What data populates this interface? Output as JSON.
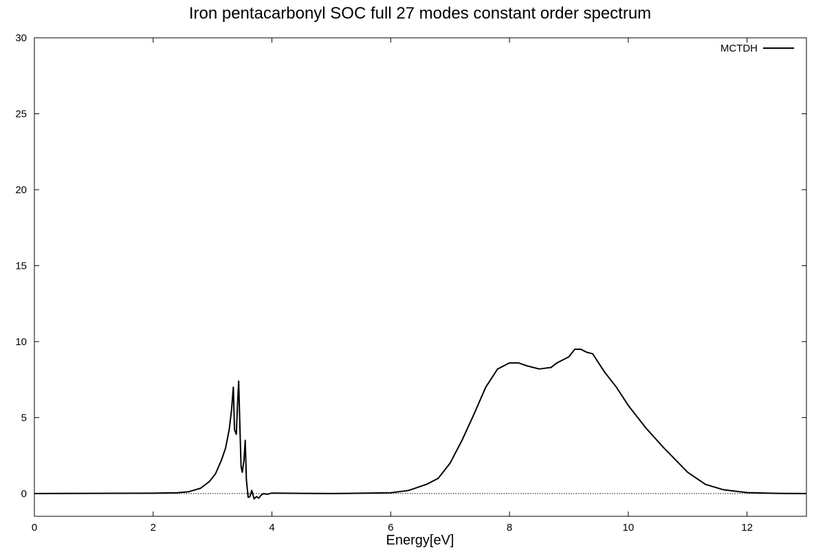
{
  "chart_data": {
    "type": "line",
    "title": "Iron pentacarbonyl SOC full 27 modes constant order spectrum",
    "xlabel": "Energy[eV]",
    "ylabel": "",
    "xlim": [
      0,
      13
    ],
    "ylim": [
      -1.5,
      30
    ],
    "x_ticks": [
      0,
      2,
      4,
      6,
      8,
      10,
      12
    ],
    "y_ticks": [
      0,
      5,
      10,
      15,
      20,
      25,
      30
    ],
    "zero_line": true,
    "grid": false,
    "legend_position": "top-right",
    "line_color": "#000000",
    "series": [
      {
        "name": "MCTDH",
        "x": [
          0,
          2.0,
          2.4,
          2.6,
          2.8,
          2.95,
          3.05,
          3.15,
          3.22,
          3.28,
          3.32,
          3.35,
          3.37,
          3.4,
          3.42,
          3.44,
          3.46,
          3.48,
          3.5,
          3.53,
          3.55,
          3.57,
          3.6,
          3.63,
          3.66,
          3.7,
          3.74,
          3.78,
          3.82,
          3.86,
          3.92,
          4.0,
          4.5,
          5.0,
          5.5,
          6.0,
          6.3,
          6.6,
          6.8,
          7.0,
          7.2,
          7.4,
          7.6,
          7.8,
          8.0,
          8.15,
          8.3,
          8.5,
          8.7,
          8.8,
          9.0,
          9.1,
          9.2,
          9.3,
          9.4,
          9.6,
          9.8,
          10.0,
          10.3,
          10.6,
          11.0,
          11.3,
          11.6,
          12.0,
          12.5,
          13.0
        ],
        "values": [
          0,
          0.02,
          0.05,
          0.12,
          0.35,
          0.8,
          1.3,
          2.2,
          3.0,
          4.2,
          5.5,
          7.0,
          4.2,
          3.9,
          5.8,
          7.4,
          4.5,
          1.8,
          1.4,
          2.2,
          3.5,
          0.9,
          -0.25,
          -0.2,
          0.2,
          -0.35,
          -0.2,
          -0.3,
          -0.1,
          0.0,
          -0.05,
          0.03,
          0.01,
          0.0,
          0.02,
          0.05,
          0.2,
          0.6,
          1.0,
          2.0,
          3.5,
          5.2,
          7.0,
          8.2,
          8.6,
          8.6,
          8.4,
          8.2,
          8.3,
          8.6,
          9.0,
          9.5,
          9.5,
          9.3,
          9.2,
          8.0,
          7.0,
          5.8,
          4.3,
          3.0,
          1.4,
          0.6,
          0.25,
          0.06,
          0.01,
          0.0
        ]
      }
    ]
  }
}
